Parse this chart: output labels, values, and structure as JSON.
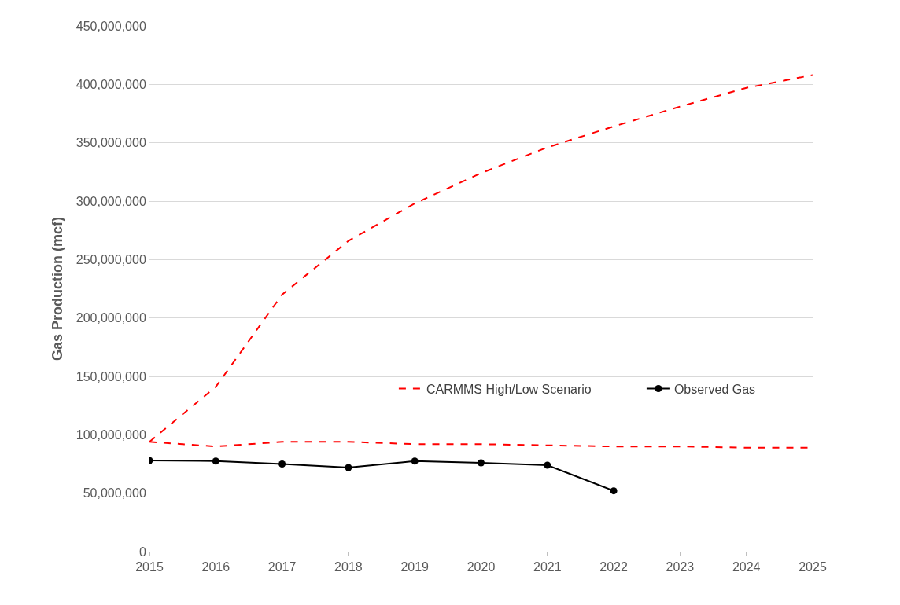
{
  "chart_data": {
    "type": "line",
    "ylabel": "Gas Production (mcf)",
    "x": [
      2015,
      2016,
      2017,
      2018,
      2019,
      2020,
      2021,
      2022,
      2023,
      2024,
      2025
    ],
    "series": [
      {
        "name": "CARMMS High/Low Scenario",
        "color": "#ff0000",
        "line_style": "dashed",
        "marker": "none",
        "values": [
          94000000,
          141000000,
          220000000,
          266000000,
          298000000,
          324000000,
          346000000,
          364000000,
          381000000,
          397000000,
          408000000
        ]
      },
      {
        "color": "#ff0000",
        "line_style": "dashed",
        "marker": "none",
        "values": [
          94000000,
          90000000,
          94000000,
          94000000,
          92000000,
          92000000,
          91000000,
          90000000,
          90000000,
          89000000,
          89000000
        ]
      },
      {
        "name": "Observed Gas",
        "color": "#000000",
        "line_style": "solid",
        "marker": "circle",
        "x": [
          2015,
          2016,
          2017,
          2018,
          2019,
          2020,
          2021,
          2022
        ],
        "values": [
          78000000,
          77500000,
          75000000,
          72000000,
          77500000,
          76000000,
          74000000,
          52000000
        ]
      }
    ],
    "xlim": [
      2015,
      2025
    ],
    "xticks": [
      2015,
      2016,
      2017,
      2018,
      2019,
      2020,
      2021,
      2022,
      2023,
      2024,
      2025
    ],
    "ylim": [
      0,
      450000000
    ],
    "yticks": [
      0,
      {
        "value": 50000000,
        "label": "50,000,000"
      },
      {
        "value": 100000000,
        "label": "100,000,000"
      },
      {
        "value": 150000000,
        "label": "150,000,000"
      },
      {
        "value": 200000000,
        "label": "200,000,000"
      },
      {
        "value": 250000000,
        "label": "250,000,000"
      },
      {
        "value": 300000000,
        "label": "300,000,000"
      },
      {
        "value": 350000000,
        "label": "350,000,000"
      },
      {
        "value": 400000000,
        "label": "400,000,000"
      },
      {
        "value": 450000000,
        "label": "450,000,000"
      }
    ],
    "grid": "y",
    "legend": "bottom right"
  }
}
